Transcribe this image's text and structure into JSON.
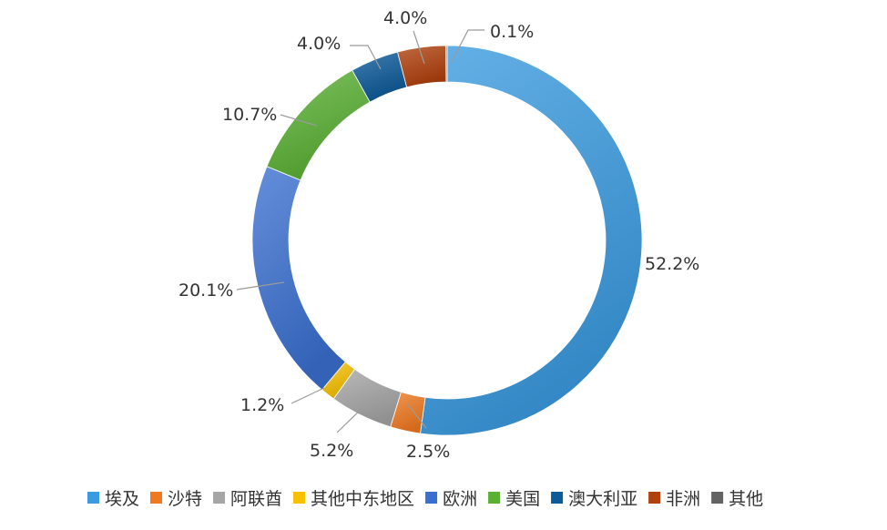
{
  "chart_data": {
    "type": "pie",
    "style": "donut",
    "categories": [
      "埃及",
      "沙特",
      "阿联酋",
      "其他中东地区",
      "欧洲",
      "美国",
      "澳大利亚",
      "非洲",
      "其他"
    ],
    "values": [
      52.2,
      2.5,
      5.2,
      1.2,
      20.1,
      10.7,
      4.0,
      4.0,
      0.1
    ],
    "labels": [
      "52.2%",
      "2.5%",
      "5.2%",
      "1.2%",
      "20.1%",
      "10.7%",
      "4.0%",
      "4.0%",
      "0.1%"
    ],
    "colors": [
      "#3a9be0",
      "#f07820",
      "#a5a5a5",
      "#f7c000",
      "#3a6fd0",
      "#5ab033",
      "#0b5a99",
      "#b0400c",
      "#636363"
    ],
    "legend_position": "bottom",
    "start": "top",
    "direction": "clockwise"
  }
}
